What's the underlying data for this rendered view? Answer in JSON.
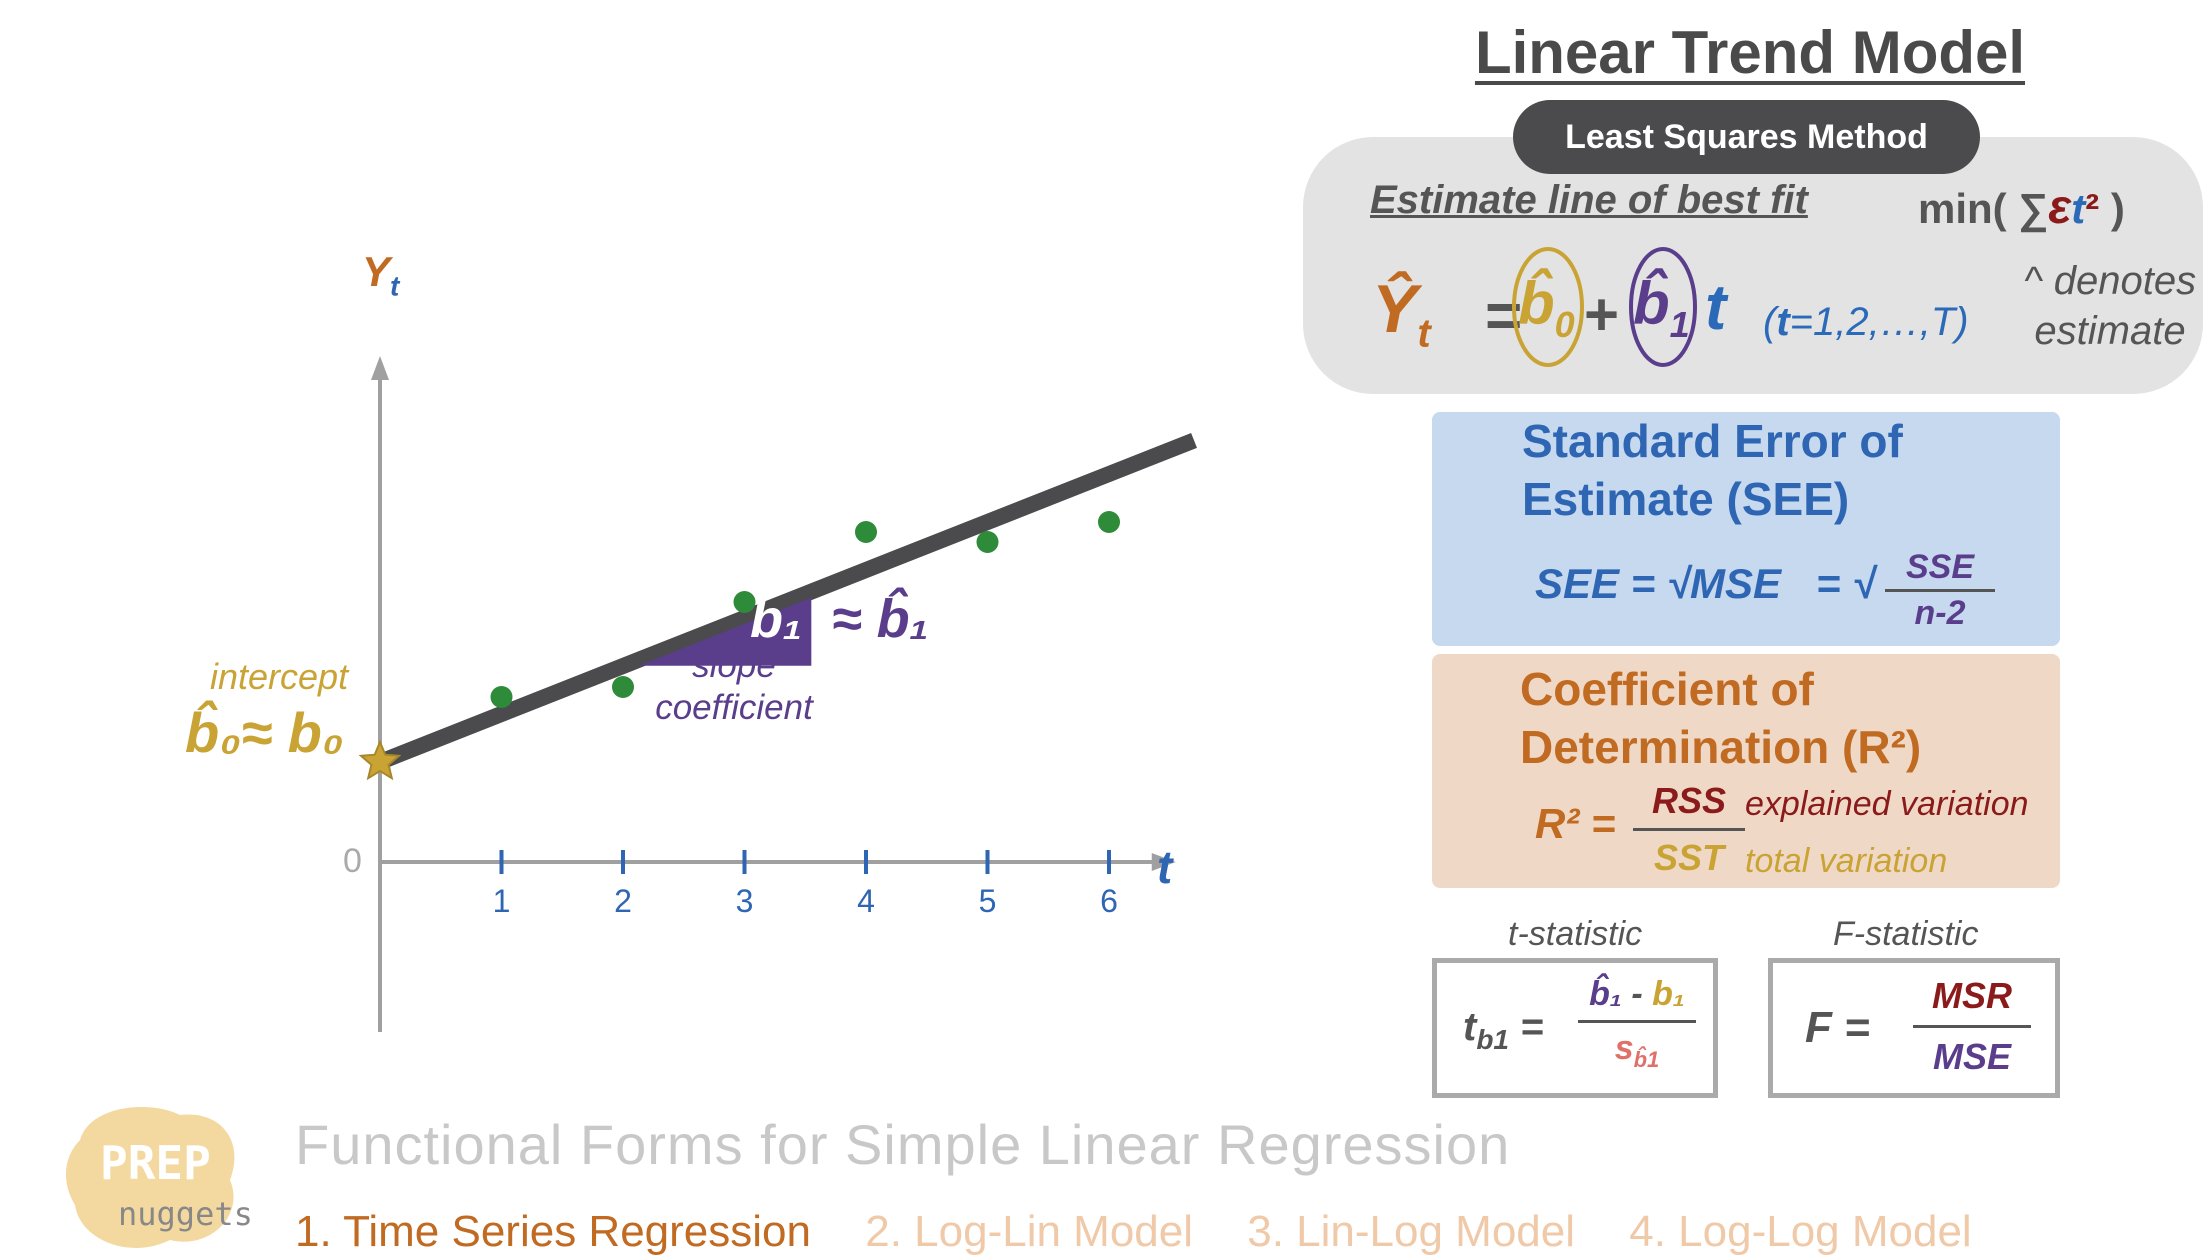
{
  "title": "Linear Trend Model",
  "least_squares": {
    "pill": "Least Squares Method",
    "estimate_label": "Estimate line of best fit",
    "min_prefix": "min( ∑",
    "min_eps": "ε",
    "min_t": "t",
    "min_sq": "²",
    "min_suffix": " )",
    "eq_y": "Ŷ",
    "eq_y_sub": "t",
    "eq_equals": "=",
    "eq_b0": "b̂",
    "eq_b0_sub": "0",
    "eq_plus": "+",
    "eq_b1": "b̂",
    "eq_b1_sub": "1",
    "eq_t": "t",
    "range_open": "(",
    "range_t": "t",
    "range_rest": "=1,2,…,T)",
    "hat_note_1": "^ denotes",
    "hat_note_2": "estimate"
  },
  "see": {
    "title_1": "Standard Error of",
    "title_2": "Estimate (SEE)",
    "formula": "SEE = √MSE   = √",
    "frac_num": "SSE",
    "frac_den": "n-2"
  },
  "r2": {
    "title_1": "Coefficient of",
    "title_2": "Determination (R²)",
    "lhs": "R² =",
    "num": "RSS",
    "den": "SST",
    "explained": "explained variation",
    "total": "total variation"
  },
  "tstat": {
    "label": "t-statistic",
    "lhs": "t",
    "lhs_sub": "b1",
    "lhs_eq": " =",
    "num_b1hat": "b̂₁",
    "num_minus": " - ",
    "num_b1": "b₁",
    "den": "s",
    "den_sub": "b̂1"
  },
  "fstat": {
    "label": "F-statistic",
    "lhs": "F =",
    "num": "MSR",
    "den": "MSE"
  },
  "chart": {
    "y_label": "Y",
    "y_label_sub": "t",
    "x_label": "t",
    "origin_label": "0",
    "intercept_label": "intercept",
    "intercept_eq": "b̂₀≈ b₀",
    "slope_eq_left": "b₁",
    "slope_eq_right": "≈ b̂₁",
    "slope_label_1": "slope",
    "slope_label_2": "coefficient"
  },
  "chart_data": {
    "type": "scatter",
    "xlabel": "t",
    "ylabel": "Yt",
    "x_ticks": [
      "1",
      "2",
      "3",
      "4",
      "5",
      "6"
    ],
    "points": [
      {
        "x": 1,
        "y": 1.65
      },
      {
        "x": 2,
        "y": 1.75
      },
      {
        "x": 3,
        "y": 2.6
      },
      {
        "x": 4,
        "y": 3.3
      },
      {
        "x": 5,
        "y": 3.2
      },
      {
        "x": 6,
        "y": 3.4
      }
    ],
    "trend_line": {
      "intercept": 1.0,
      "slope": 0.48
    },
    "xlim": [
      0,
      6.5
    ],
    "ylim": [
      -1.7,
      5.0
    ],
    "colors": {
      "points": "#2e8b3a",
      "line": "#4b4b4d",
      "axis": "#a0a0a0",
      "ticks": "#2f66b3",
      "intercept": "#c9a334",
      "slope": "#5a3e8c"
    }
  },
  "footer": {
    "logo_top": "PREP",
    "logo_bottom": "nuggets",
    "subtitle": "Functional Forms for Simple Linear Regression",
    "topic_1": "1. Time Series Regression",
    "topic_2": "2. Log-Lin Model",
    "topic_3": "3. Lin-Log Model",
    "topic_4": "4. Log-Log Model"
  }
}
